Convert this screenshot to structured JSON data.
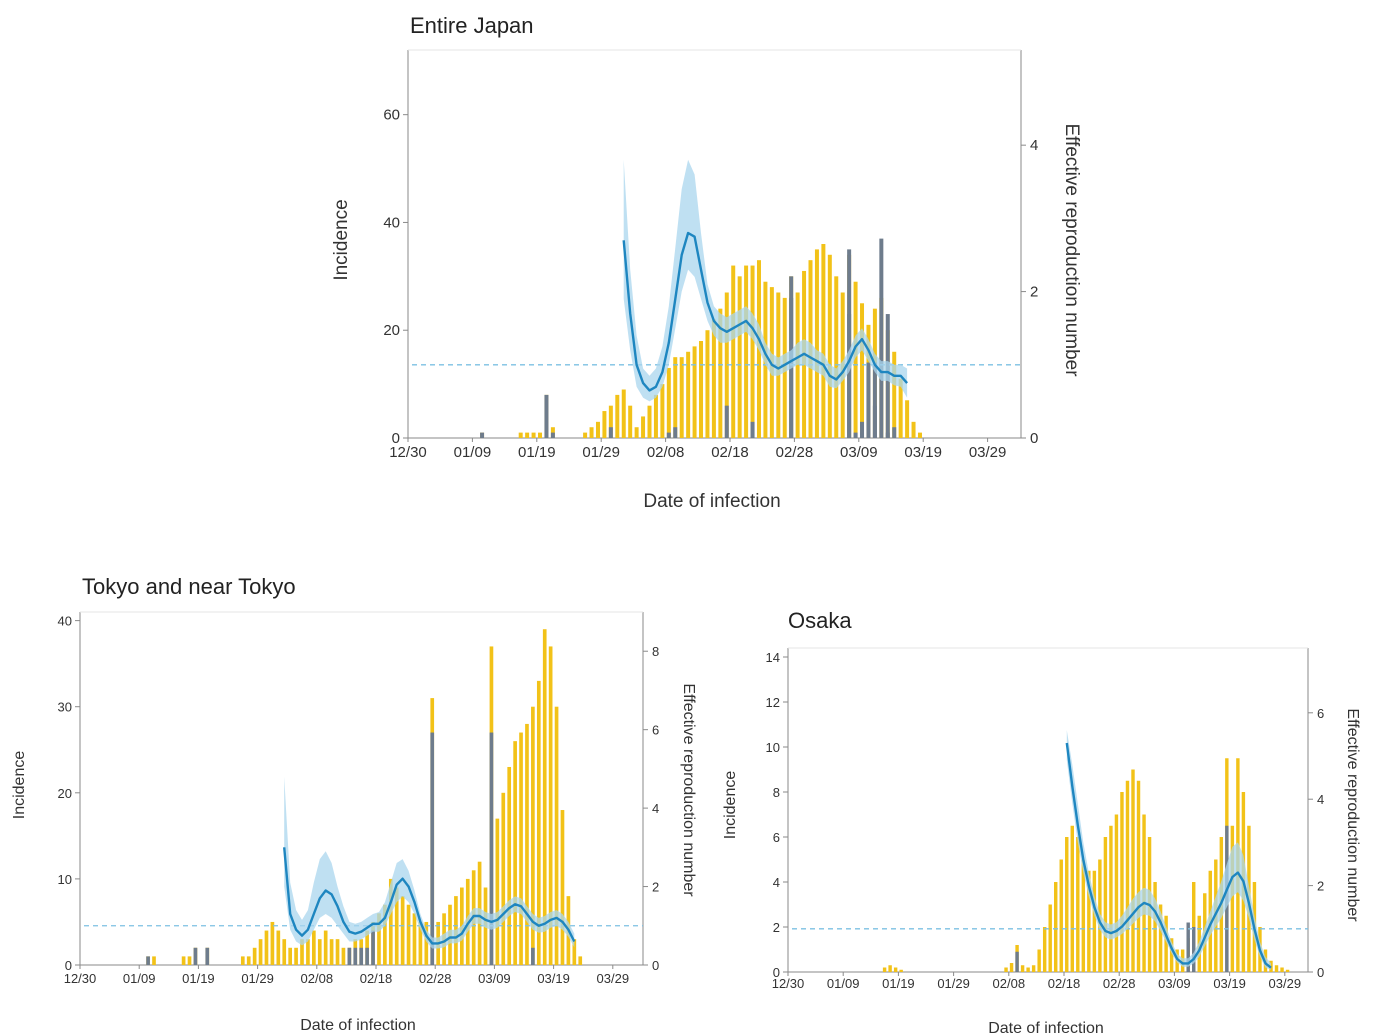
{
  "colors": {
    "imported": "#f2c218",
    "domestic": "#6e7c8c",
    "rt_line": "#1e86c0",
    "rt_band": "#a9d6ee",
    "threshold": "#7cc0e3",
    "axis": "#8a8a8a"
  },
  "chart_data": [
    {
      "type": "bar",
      "title": "Entire Japan",
      "xlabel": "Date of infection",
      "ylabel": "Incidence",
      "y2label": "Effective reproduction number",
      "x_ticks": [
        "12/30",
        "01/09",
        "01/19",
        "01/29",
        "02/08",
        "02/18",
        "02/28",
        "03/09",
        "03/19",
        "03/29"
      ],
      "y_ticks": [
        0,
        20,
        40,
        60
      ],
      "y2_ticks": [
        0,
        2,
        4
      ],
      "ylim": [
        0,
        72
      ],
      "y2lim": [
        0,
        5.3
      ],
      "grid": false,
      "incidence": [
        0,
        0,
        0,
        0,
        0,
        0,
        0,
        0,
        0,
        0,
        0,
        1,
        0,
        0,
        0,
        0,
        0,
        1,
        1,
        1,
        1,
        8,
        2,
        0,
        0,
        0,
        0,
        1,
        2,
        3,
        5,
        6,
        8,
        9,
        6,
        2,
        4,
        6,
        8,
        10,
        13,
        15,
        15,
        16,
        17,
        18,
        20,
        22,
        24,
        27,
        32,
        30,
        32,
        32,
        33,
        29,
        28,
        27,
        26,
        30,
        27,
        31,
        33,
        35,
        36,
        34,
        30,
        27,
        34,
        29,
        25,
        21,
        24,
        26,
        20,
        16,
        11,
        7,
        3,
        1
      ],
      "domestic": [
        0,
        0,
        0,
        0,
        0,
        0,
        0,
        0,
        0,
        0,
        0,
        1,
        0,
        0,
        0,
        0,
        0,
        0,
        0,
        0,
        0,
        8,
        1,
        0,
        0,
        0,
        0,
        0,
        0,
        0,
        0,
        2,
        0,
        0,
        0,
        0,
        0,
        0,
        0,
        0,
        1,
        2,
        0,
        0,
        0,
        0,
        0,
        0,
        0,
        6,
        0,
        0,
        0,
        3,
        0,
        0,
        0,
        0,
        0,
        30,
        0,
        0,
        0,
        0,
        0,
        0,
        0,
        0,
        35,
        1,
        3,
        0,
        6,
        0,
        1,
        2,
        0,
        0,
        0,
        0
      ],
      "extra": [
        0,
        0,
        0,
        0,
        0,
        0,
        0,
        0,
        0,
        0,
        0,
        0,
        0,
        0,
        0,
        0,
        0,
        0,
        0,
        0,
        0,
        0,
        0,
        0,
        0,
        0,
        0,
        0,
        0,
        0,
        0,
        0,
        0,
        0,
        0,
        0,
        0,
        0,
        0,
        0,
        0,
        0,
        0,
        0,
        0,
        0,
        0,
        0,
        0,
        0,
        0,
        0,
        0,
        0,
        0,
        0,
        0,
        0,
        0,
        26,
        0,
        0,
        0,
        0,
        0,
        0,
        0,
        0,
        23,
        0,
        1,
        14,
        14,
        37,
        23,
        0,
        0,
        0,
        0,
        0
      ],
      "rt_start": 33,
      "rt": [
        2.7,
        1.7,
        1.0,
        0.75,
        0.65,
        0.7,
        0.9,
        1.3,
        1.9,
        2.5,
        2.8,
        2.75,
        2.3,
        1.85,
        1.6,
        1.5,
        1.45,
        1.5,
        1.55,
        1.6,
        1.5,
        1.35,
        1.15,
        1.0,
        0.95,
        1.0,
        1.05,
        1.1,
        1.15,
        1.1,
        1.05,
        1.0,
        0.85,
        0.8,
        0.9,
        1.05,
        1.25,
        1.35,
        1.2,
        1.0,
        0.9,
        0.9,
        0.85,
        0.85,
        0.75
      ],
      "rt_upper": [
        3.8,
        2.3,
        1.4,
        0.95,
        0.85,
        0.95,
        1.25,
        1.8,
        2.6,
        3.4,
        3.8,
        3.6,
        2.8,
        2.1,
        1.8,
        1.7,
        1.65,
        1.7,
        1.75,
        1.8,
        1.7,
        1.55,
        1.3,
        1.15,
        1.1,
        1.15,
        1.2,
        1.3,
        1.35,
        1.3,
        1.2,
        1.15,
        1.0,
        0.95,
        1.05,
        1.2,
        1.4,
        1.5,
        1.35,
        1.15,
        1.05,
        1.05,
        1.0,
        1.0,
        0.95
      ],
      "rt_lower": [
        1.9,
        1.2,
        0.7,
        0.55,
        0.5,
        0.55,
        0.7,
        1.0,
        1.5,
        2.0,
        2.3,
        2.2,
        1.9,
        1.6,
        1.4,
        1.3,
        1.3,
        1.35,
        1.4,
        1.45,
        1.35,
        1.2,
        1.0,
        0.85,
        0.85,
        0.9,
        0.95,
        1.0,
        1.0,
        0.95,
        0.9,
        0.85,
        0.7,
        0.68,
        0.78,
        0.9,
        1.1,
        1.2,
        1.05,
        0.9,
        0.78,
        0.78,
        0.72,
        0.7,
        0.55
      ],
      "threshold": 1
    },
    {
      "type": "bar",
      "title": "Tokyo and near Tokyo",
      "xlabel": "Date of infection",
      "ylabel": "Incidence",
      "y2label": "Effective reproduction number",
      "x_ticks": [
        "12/30",
        "01/09",
        "01/19",
        "01/29",
        "02/08",
        "02/18",
        "02/28",
        "03/09",
        "03/19",
        "03/29"
      ],
      "y_ticks": [
        0,
        10,
        20,
        30,
        40
      ],
      "y2_ticks": [
        0,
        2,
        4,
        6,
        8
      ],
      "ylim": [
        0,
        41
      ],
      "y2lim": [
        0,
        9
      ],
      "grid": false,
      "incidence": [
        0,
        0,
        0,
        0,
        0,
        0,
        0,
        0,
        0,
        0,
        0,
        1,
        1,
        0,
        0,
        0,
        0,
        1,
        1,
        2,
        0,
        2,
        0,
        0,
        0,
        0,
        0,
        1,
        1,
        2,
        3,
        4,
        5,
        4,
        3,
        2,
        2,
        3,
        3,
        4,
        3,
        4,
        3,
        3,
        2,
        2,
        3,
        3,
        4,
        5,
        6,
        7,
        10,
        9,
        8,
        7,
        6,
        5,
        5,
        31,
        5,
        6,
        7,
        8,
        9,
        10,
        11,
        12,
        9,
        37,
        17,
        20,
        23,
        26,
        27,
        28,
        30,
        33,
        39,
        37,
        30,
        18,
        8,
        3,
        1
      ],
      "domestic": [
        0,
        0,
        0,
        0,
        0,
        0,
        0,
        0,
        0,
        0,
        0,
        1,
        0,
        0,
        0,
        0,
        0,
        0,
        0,
        2,
        0,
        2,
        0,
        0,
        0,
        0,
        0,
        0,
        0,
        0,
        0,
        0,
        0,
        0,
        0,
        0,
        0,
        0,
        0,
        0,
        0,
        0,
        0,
        0,
        0,
        2,
        2,
        2,
        2,
        4,
        0,
        0,
        0,
        0,
        0,
        0,
        0,
        0,
        0,
        27,
        0,
        0,
        0,
        0,
        0,
        0,
        0,
        0,
        0,
        27,
        0,
        0,
        0,
        0,
        0,
        0,
        2,
        0,
        0,
        0,
        0,
        0,
        0,
        0,
        0
      ],
      "extra": [
        0,
        0,
        0,
        0,
        0,
        0,
        0,
        0,
        0,
        0,
        0,
        0,
        0,
        0,
        0,
        0,
        0,
        0,
        0,
        0,
        0,
        0,
        0,
        0,
        0,
        0,
        0,
        0,
        0,
        0,
        0,
        0,
        0,
        0,
        0,
        0,
        0,
        0,
        0,
        0,
        0,
        0,
        0,
        0,
        0,
        0,
        0,
        0,
        0,
        0,
        0,
        0,
        0,
        0,
        0,
        0,
        0,
        0,
        0,
        0,
        0,
        0,
        0,
        0,
        0,
        0,
        0,
        0,
        0,
        0,
        0,
        0,
        0,
        0,
        0,
        0,
        0,
        0,
        0,
        0,
        0,
        0,
        0,
        0,
        0
      ],
      "rt_start": 34,
      "rt": [
        3.0,
        1.3,
        0.9,
        0.75,
        0.9,
        1.3,
        1.7,
        1.9,
        1.8,
        1.5,
        1.1,
        0.85,
        0.8,
        0.85,
        0.95,
        1.05,
        1.05,
        1.2,
        1.6,
        2.05,
        2.2,
        2.0,
        1.6,
        1.1,
        0.75,
        0.55,
        0.55,
        0.6,
        0.7,
        0.7,
        0.8,
        1.05,
        1.25,
        1.25,
        1.15,
        1.1,
        1.15,
        1.3,
        1.45,
        1.55,
        1.5,
        1.3,
        1.1,
        1.0,
        1.05,
        1.15,
        1.2,
        1.1,
        0.9,
        0.6
      ],
      "rt_upper": [
        4.8,
        2.1,
        1.4,
        1.15,
        1.4,
        2.1,
        2.7,
        2.9,
        2.6,
        2.0,
        1.5,
        1.1,
        1.05,
        1.1,
        1.2,
        1.3,
        1.35,
        1.6,
        2.1,
        2.6,
        2.7,
        2.4,
        1.9,
        1.3,
        0.9,
        0.7,
        0.7,
        0.8,
        0.9,
        0.9,
        1.0,
        1.25,
        1.45,
        1.45,
        1.35,
        1.3,
        1.35,
        1.5,
        1.65,
        1.75,
        1.7,
        1.5,
        1.3,
        1.2,
        1.25,
        1.35,
        1.4,
        1.3,
        1.1,
        0.8
      ],
      "rt_lower": [
        2.0,
        0.9,
        0.6,
        0.5,
        0.6,
        0.9,
        1.2,
        1.3,
        1.2,
        1.0,
        0.8,
        0.6,
        0.6,
        0.65,
        0.75,
        0.85,
        0.85,
        1.0,
        1.3,
        1.6,
        1.75,
        1.6,
        1.3,
        0.9,
        0.6,
        0.42,
        0.42,
        0.45,
        0.55,
        0.55,
        0.62,
        0.85,
        1.05,
        1.05,
        0.95,
        0.9,
        0.95,
        1.1,
        1.25,
        1.35,
        1.3,
        1.1,
        0.9,
        0.82,
        0.85,
        0.95,
        1.0,
        0.9,
        0.72,
        0.45
      ],
      "threshold": 1
    },
    {
      "type": "bar",
      "title": "Osaka",
      "xlabel": "Date of infection",
      "ylabel": "Incidence",
      "y2label": "Effective reproduction number",
      "x_ticks": [
        "12/30",
        "01/09",
        "01/19",
        "01/29",
        "02/08",
        "02/18",
        "02/28",
        "03/09",
        "03/19",
        "03/29"
      ],
      "y_ticks": [
        0,
        2,
        4,
        6,
        8,
        10,
        12,
        14
      ],
      "y2_ticks": [
        0,
        2,
        4,
        6
      ],
      "ylim": [
        0,
        14.4
      ],
      "y2lim": [
        0,
        7.5
      ],
      "grid": false,
      "incidence": [
        0,
        0,
        0,
        0,
        0,
        0,
        0,
        0,
        0,
        0,
        0,
        0,
        0,
        0,
        0,
        0,
        0,
        0.2,
        0.3,
        0.2,
        0.1,
        0,
        0,
        0,
        0,
        0,
        0,
        0,
        0,
        0,
        0,
        0,
        0,
        0,
        0,
        0,
        0,
        0,
        0,
        0.2,
        0.4,
        1.2,
        0.3,
        0.2,
        0.3,
        1.0,
        2.0,
        3.0,
        4.0,
        5.0,
        6.0,
        6.5,
        6.0,
        5.0,
        4.5,
        4.5,
        5.0,
        6.0,
        6.5,
        7.0,
        8.0,
        8.5,
        9.0,
        8.5,
        7.0,
        6.0,
        4.0,
        3.0,
        2.5,
        1.5,
        1.0,
        1.0,
        1.5,
        4.0,
        2.5,
        3.5,
        4.5,
        5.0,
        6.0,
        9.5,
        6.5,
        9.5,
        8.0,
        6.5,
        4.0,
        2.0,
        1.0,
        0.5,
        0.3,
        0.2,
        0.1
      ],
      "domestic": [
        0,
        0,
        0,
        0,
        0,
        0,
        0,
        0,
        0,
        0,
        0,
        0,
        0,
        0,
        0,
        0,
        0,
        0,
        0,
        0,
        0,
        0,
        0,
        0,
        0,
        0,
        0,
        0,
        0,
        0,
        0,
        0,
        0,
        0,
        0,
        0,
        0,
        0,
        0,
        0,
        0,
        0.9,
        0,
        0,
        0,
        0,
        0,
        0,
        0,
        0,
        0,
        0,
        0,
        0,
        0,
        0,
        0,
        0,
        0,
        0,
        0,
        0,
        0,
        0,
        0,
        0,
        0,
        0,
        0,
        0,
        0,
        0,
        2.2,
        2.0,
        0,
        0,
        0,
        0,
        0,
        6.5,
        0,
        0,
        0,
        0,
        0,
        0,
        0,
        0,
        0,
        0,
        0
      ],
      "extra": [
        0,
        0,
        0,
        0,
        0,
        0,
        0,
        0,
        0,
        0,
        0,
        0,
        0,
        0,
        0,
        0,
        0,
        0,
        0,
        0,
        0,
        0,
        0,
        0,
        0,
        0,
        0,
        0,
        0,
        0,
        0,
        0,
        0,
        0,
        0,
        0,
        0,
        0,
        0,
        0,
        0,
        0,
        0,
        0,
        0,
        0,
        0,
        0,
        0,
        0,
        0,
        0,
        0,
        0,
        0,
        0,
        0,
        0,
        0,
        0,
        0,
        0,
        0,
        0,
        0,
        0,
        0,
        0,
        0,
        0,
        0,
        0,
        0,
        0,
        0,
        0,
        0,
        0,
        0,
        0,
        0,
        0,
        0,
        0,
        0,
        0,
        0,
        0,
        0,
        0,
        0
      ],
      "rt_start": 50,
      "rt": [
        5.3,
        4.3,
        3.4,
        2.6,
        2.0,
        1.5,
        1.15,
        0.95,
        0.9,
        0.95,
        1.05,
        1.2,
        1.35,
        1.5,
        1.6,
        1.55,
        1.4,
        1.15,
        0.85,
        0.55,
        0.3,
        0.2,
        0.2,
        0.3,
        0.5,
        0.8,
        1.1,
        1.35,
        1.6,
        1.9,
        2.2,
        2.3,
        2.1,
        1.6,
        1.0,
        0.5,
        0.2,
        0.1
      ],
      "rt_upper": [
        5.6,
        4.8,
        3.9,
        3.0,
        2.3,
        1.75,
        1.35,
        1.15,
        1.1,
        1.15,
        1.3,
        1.5,
        1.7,
        1.85,
        1.95,
        1.9,
        1.7,
        1.4,
        1.05,
        0.7,
        0.42,
        0.32,
        0.32,
        0.45,
        0.7,
        1.05,
        1.4,
        1.75,
        2.1,
        2.5,
        2.9,
        3.0,
        2.7,
        2.0,
        1.3,
        0.7,
        0.35,
        0.2
      ],
      "rt_lower": [
        4.9,
        3.9,
        3.0,
        2.3,
        1.75,
        1.3,
        0.98,
        0.8,
        0.75,
        0.8,
        0.88,
        1.0,
        1.12,
        1.25,
        1.33,
        1.3,
        1.17,
        0.95,
        0.7,
        0.43,
        0.22,
        0.12,
        0.12,
        0.2,
        0.35,
        0.6,
        0.85,
        1.05,
        1.25,
        1.5,
        1.75,
        1.85,
        1.65,
        1.25,
        0.75,
        0.35,
        0.1,
        0.05
      ],
      "threshold": 1
    }
  ]
}
